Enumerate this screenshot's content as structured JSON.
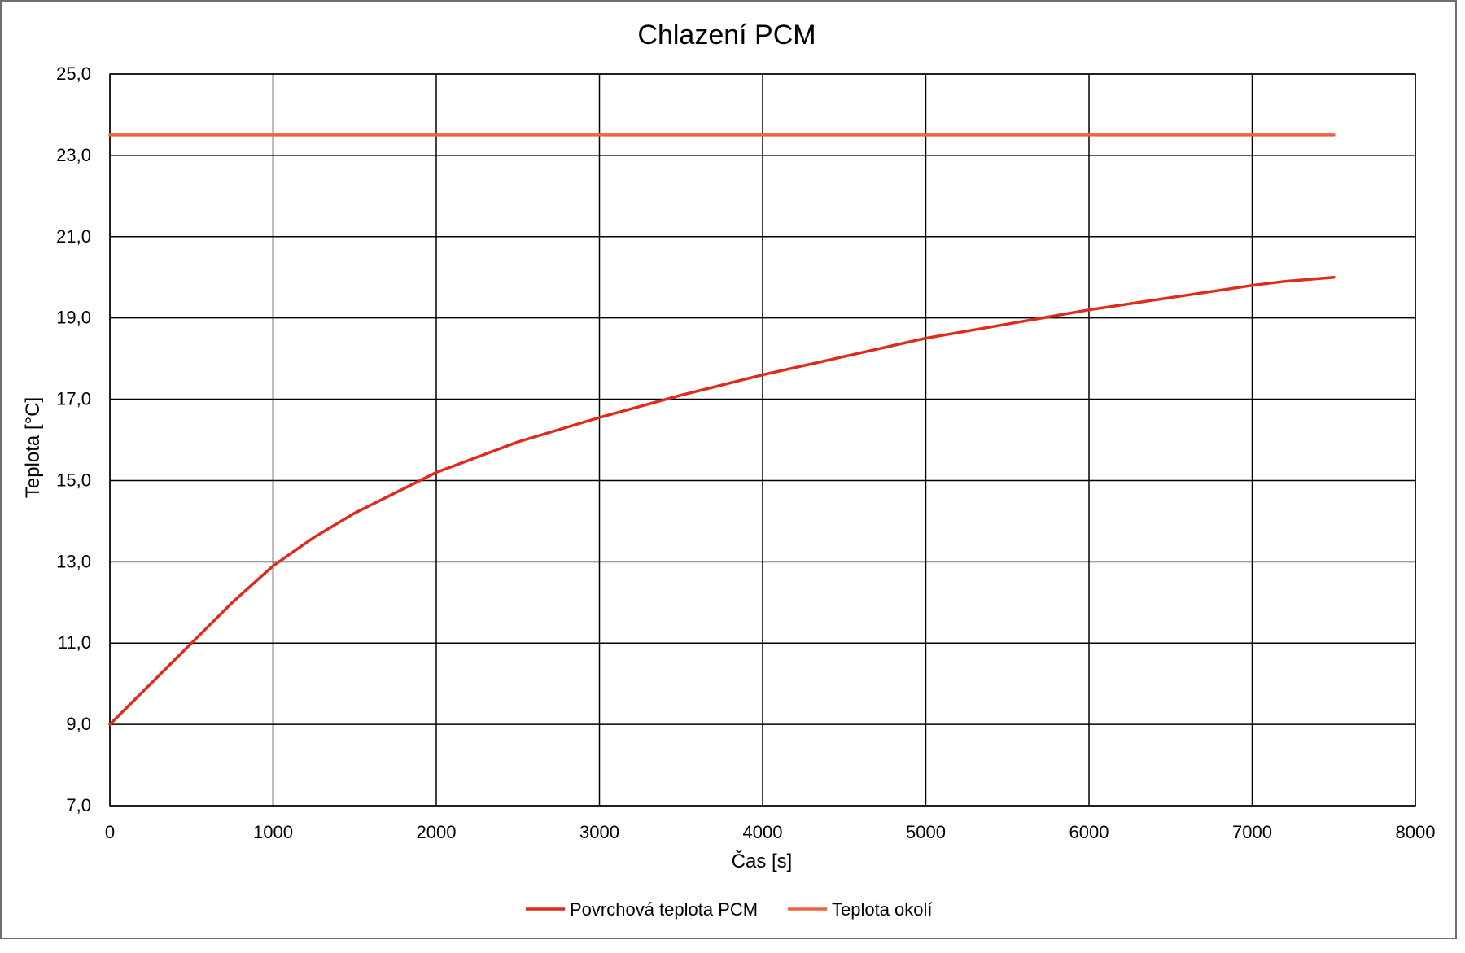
{
  "chart_data": {
    "type": "line",
    "title": "Chlazení PCM",
    "xlabel": "Čas [s]",
    "ylabel": "Teplota [°C]",
    "xlim": [
      0,
      8000
    ],
    "ylim": [
      7,
      25
    ],
    "x_ticks": [
      0,
      1000,
      2000,
      3000,
      4000,
      5000,
      6000,
      7000,
      8000
    ],
    "x_tick_labels": [
      "0",
      "1000",
      "2000",
      "3000",
      "4000",
      "5000",
      "6000",
      "7000",
      "8000"
    ],
    "y_ticks": [
      7,
      9,
      11,
      13,
      15,
      17,
      19,
      21,
      23,
      25
    ],
    "y_tick_labels": [
      "7,0",
      "9,0",
      "11,0",
      "13,0",
      "15,0",
      "17,0",
      "19,0",
      "21,0",
      "23,0",
      "25,0"
    ],
    "grid": true,
    "legend_position": "bottom",
    "series": [
      {
        "name": "Povrchová teplota PCM",
        "color": "#dd2c1c",
        "points": [
          [
            0,
            9.0
          ],
          [
            250,
            10.0
          ],
          [
            500,
            11.0
          ],
          [
            750,
            12.0
          ],
          [
            1000,
            12.9
          ],
          [
            1250,
            13.6
          ],
          [
            1500,
            14.2
          ],
          [
            1750,
            14.7
          ],
          [
            2000,
            15.2
          ],
          [
            2500,
            15.95
          ],
          [
            3000,
            16.55
          ],
          [
            3500,
            17.1
          ],
          [
            4000,
            17.6
          ],
          [
            4500,
            18.05
          ],
          [
            5000,
            18.5
          ],
          [
            5500,
            18.85
          ],
          [
            6000,
            19.2
          ],
          [
            6500,
            19.5
          ],
          [
            7000,
            19.8
          ],
          [
            7200,
            19.9
          ],
          [
            7500,
            20.0
          ]
        ]
      },
      {
        "name": "Teplota okolí",
        "color": "#f06142",
        "points": [
          [
            0,
            23.5
          ],
          [
            7500,
            23.5
          ]
        ]
      }
    ]
  }
}
